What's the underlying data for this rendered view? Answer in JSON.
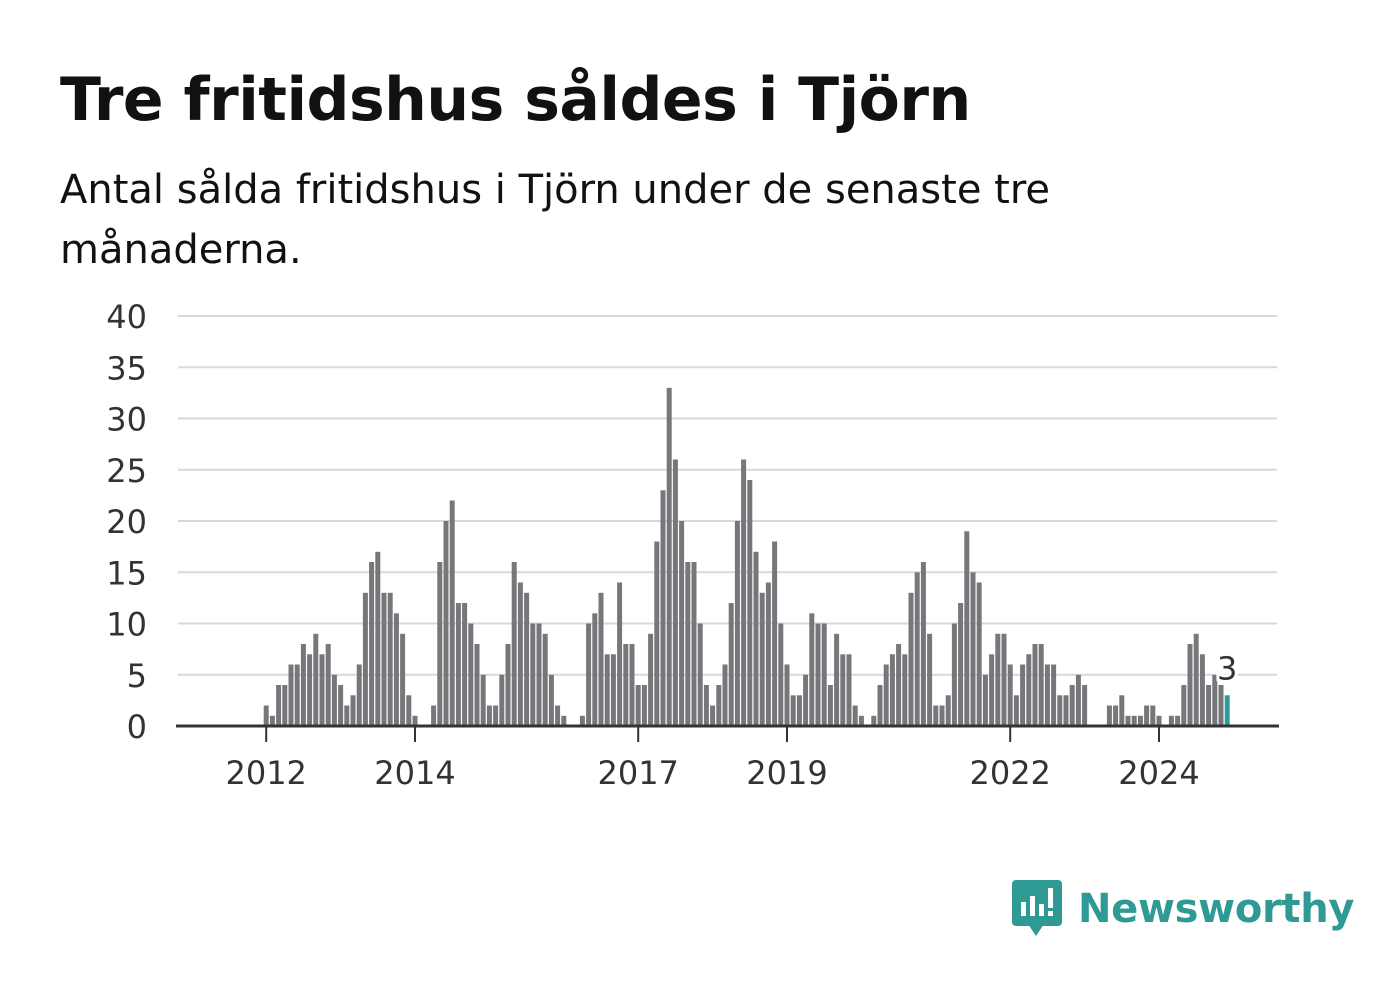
{
  "title": "Tre fritidshus såldes i Tjörn",
  "subtitle": "Antal sålda fritidshus i Tjörn under de senaste tre månaderna.",
  "logo_text": "Newsworthy",
  "colors": {
    "bar": "#77767a",
    "highlight": "#2a9d99",
    "grid": "#d9d9d9",
    "axis": "#333333",
    "brand": "#2f9a94"
  },
  "chart_data": {
    "type": "bar",
    "ylim": [
      0,
      40
    ],
    "yticks": [
      0,
      5,
      10,
      15,
      20,
      25,
      30,
      35,
      40
    ],
    "grid": true,
    "x_start": "2011-07",
    "xtick_labels": [
      {
        "label": "2012",
        "month": "2012-01"
      },
      {
        "label": "2014",
        "month": "2014-01"
      },
      {
        "label": "2017",
        "month": "2017-01"
      },
      {
        "label": "2019",
        "month": "2019-01"
      },
      {
        "label": "2022",
        "month": "2022-01"
      },
      {
        "label": "2024",
        "month": "2024-01"
      }
    ],
    "values": [
      0,
      0,
      0,
      0,
      0,
      0,
      2,
      1,
      4,
      4,
      6,
      6,
      8,
      7,
      9,
      7,
      8,
      5,
      4,
      2,
      3,
      6,
      13,
      16,
      17,
      13,
      13,
      11,
      9,
      3,
      1,
      0,
      0,
      2,
      16,
      20,
      22,
      12,
      12,
      10,
      8,
      5,
      2,
      2,
      5,
      8,
      16,
      14,
      13,
      10,
      10,
      9,
      5,
      2,
      1,
      0,
      0,
      1,
      10,
      11,
      13,
      7,
      7,
      14,
      8,
      8,
      4,
      4,
      9,
      18,
      23,
      33,
      26,
      20,
      16,
      16,
      10,
      4,
      2,
      4,
      6,
      12,
      20,
      26,
      24,
      17,
      13,
      14,
      18,
      10,
      6,
      3,
      3,
      5,
      11,
      10,
      10,
      4,
      9,
      7,
      7,
      2,
      1,
      0,
      1,
      4,
      6,
      7,
      8,
      7,
      13,
      15,
      16,
      9,
      2,
      2,
      3,
      10,
      12,
      19,
      15,
      14,
      5,
      7,
      9,
      9,
      6,
      3,
      6,
      7,
      8,
      8,
      6,
      6,
      3,
      3,
      4,
      5,
      4,
      0,
      0,
      0,
      2,
      2,
      3,
      1,
      1,
      1,
      2,
      2,
      1,
      0,
      1,
      1,
      4,
      8,
      9,
      7,
      4,
      5,
      4,
      3
    ],
    "highlight_last": true,
    "annotation": {
      "text": "3"
    }
  }
}
